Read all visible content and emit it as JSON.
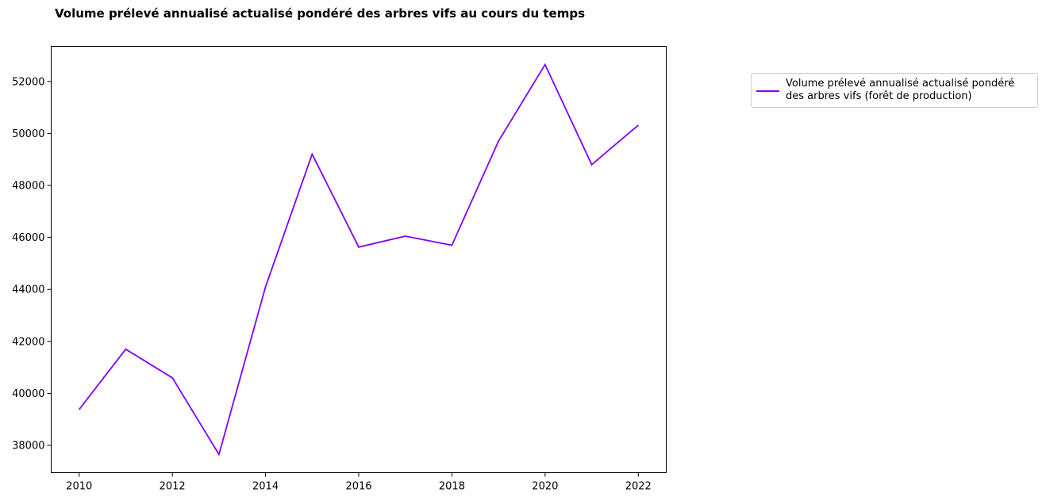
{
  "chart_data": {
    "type": "line",
    "title": "Volume prélevé annualisé actualisé pondéré des arbres vifs au cours du temps",
    "xlabel": "",
    "ylabel": "",
    "x": [
      2010,
      2011,
      2012,
      2013,
      2014,
      2015,
      2016,
      2017,
      2018,
      2019,
      2020,
      2021,
      2022
    ],
    "series": [
      {
        "name": "Volume prélevé annualisé actualisé pondéré des arbres vifs (forêt de production)",
        "color": "#8000ff",
        "values": [
          39380,
          41700,
          40600,
          37650,
          44100,
          49200,
          45630,
          46050,
          45700,
          49700,
          52650,
          48800,
          50320
        ]
      }
    ],
    "xlim": [
      2009.4,
      2022.6
    ],
    "ylim": [
      36950,
      53350
    ],
    "xticks": [
      2010,
      2012,
      2014,
      2016,
      2018,
      2020,
      2022
    ],
    "yticks": [
      38000,
      40000,
      42000,
      44000,
      46000,
      48000,
      50000,
      52000
    ],
    "grid": false,
    "legend_position": "outside-right"
  },
  "legend": {
    "line1": "Volume prélevé annualisé actualisé pondéré",
    "line2": "des arbres vifs (forêt de production)"
  }
}
